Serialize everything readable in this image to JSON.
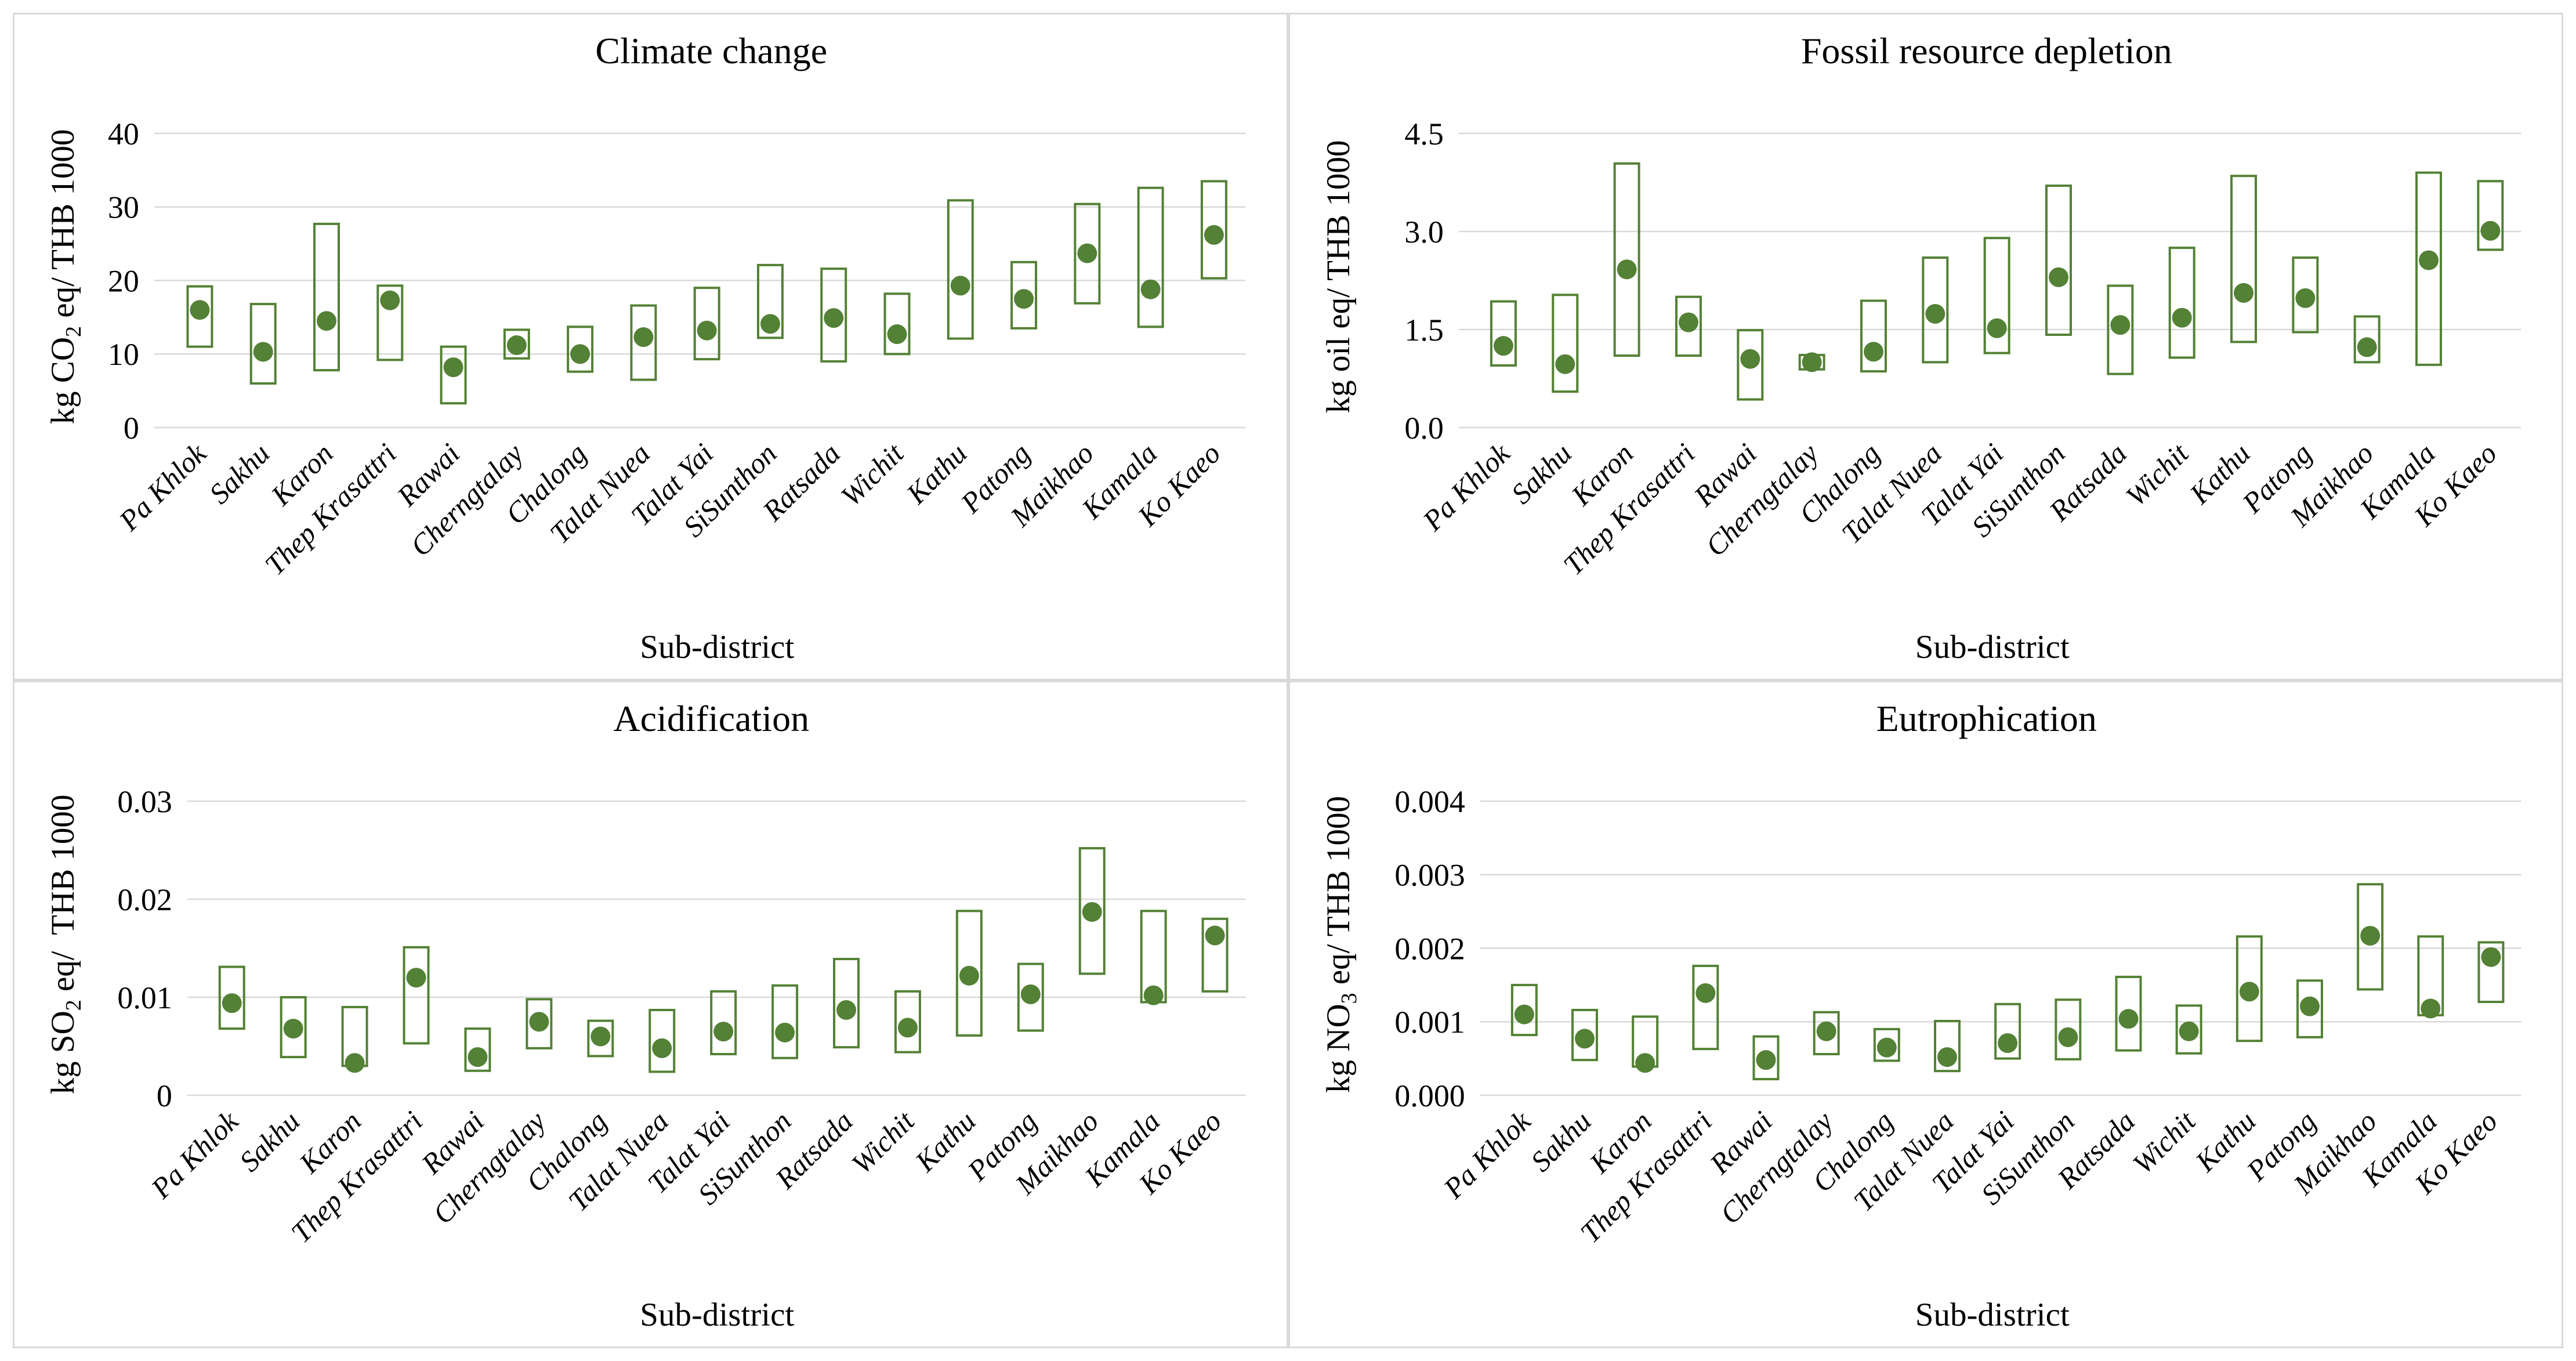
{
  "figure": {
    "x_axis_title": "Sub-district",
    "colors": {
      "marker_green": "#538135",
      "gridline": "#d9d9d9",
      "panel_border": "#d9d9d9",
      "background": "#ffffff",
      "text": "#000000"
    }
  },
  "chart_data": [
    {
      "type": "box-dot",
      "panel": "top-left",
      "title": "Climate change",
      "xlabel": "Sub-district",
      "ylabel": {
        "pre": "kg CO",
        "sub": "2",
        "post": " eq/ THB 1000"
      },
      "y_ticks": [
        "0",
        "10",
        "20",
        "30",
        "40"
      ],
      "y_tick_values": [
        0,
        10,
        20,
        30,
        40
      ],
      "ylim": [
        0,
        40
      ],
      "grid": true,
      "categories": [
        "Pa Khlok",
        "Sakhu",
        "Karon",
        "Thep Krasattri",
        "Rawai",
        "Cherngtalay",
        "Chalong",
        "Talat Nuea",
        "Talat Yai",
        "SiSunthon",
        "Ratsada",
        "Wichit",
        "Kathu",
        "Patong",
        "Maikhao",
        "Kamala",
        "Ko Kaeo"
      ],
      "series": {
        "dot": [
          16.0,
          10.3,
          14.5,
          17.3,
          8.2,
          11.2,
          10.0,
          12.3,
          13.2,
          14.1,
          14.9,
          12.7,
          19.3,
          17.5,
          23.7,
          18.8,
          26.2
        ],
        "box_low": [
          11.0,
          6.0,
          7.8,
          9.2,
          3.3,
          9.4,
          7.6,
          6.5,
          9.3,
          12.2,
          9.0,
          10.0,
          12.1,
          13.5,
          16.9,
          13.7,
          20.3
        ],
        "box_high": [
          19.2,
          16.8,
          27.7,
          19.3,
          11.0,
          13.3,
          13.7,
          16.6,
          19.0,
          22.1,
          21.6,
          18.2,
          30.9,
          22.5,
          30.4,
          32.6,
          33.5
        ]
      }
    },
    {
      "type": "box-dot",
      "panel": "top-right",
      "title": "Fossil resource depletion",
      "xlabel": "Sub-district",
      "ylabel": {
        "pre": "kg oil eq/ THB 1000",
        "sub": "",
        "post": ""
      },
      "y_ticks": [
        "0.0",
        "1.5",
        "3.0",
        "4.5"
      ],
      "y_tick_values": [
        0,
        1.5,
        3.0,
        4.5
      ],
      "ylim": [
        0,
        4.5
      ],
      "grid": true,
      "categories": [
        "Pa Khlok",
        "Sakhu",
        "Karon",
        "Thep Krasattri",
        "Rawai",
        "Cherngtalay",
        "Chalong",
        "Talat Nuea",
        "Talat Yai",
        "SiSunthon",
        "Ratsada",
        "Wichit",
        "Kathu",
        "Patong",
        "Maikhao",
        "Kamala",
        "Ko Kaeo"
      ],
      "series": {
        "dot": [
          1.25,
          0.97,
          2.42,
          1.61,
          1.05,
          1.0,
          1.16,
          1.74,
          1.52,
          2.3,
          1.57,
          1.68,
          2.06,
          1.98,
          1.23,
          2.56,
          3.01
        ],
        "box_low": [
          0.95,
          0.55,
          1.1,
          1.1,
          0.43,
          0.89,
          0.86,
          1.0,
          1.14,
          1.42,
          0.82,
          1.07,
          1.31,
          1.46,
          1.0,
          0.96,
          2.72
        ],
        "box_high": [
          1.93,
          2.03,
          4.04,
          2.0,
          1.49,
          1.11,
          1.94,
          2.6,
          2.9,
          3.7,
          2.17,
          2.75,
          3.85,
          2.6,
          1.7,
          3.9,
          3.77
        ]
      }
    },
    {
      "type": "box-dot",
      "panel": "bottom-left",
      "title": "Acidification",
      "xlabel": "Sub-district",
      "ylabel": {
        "pre": "kg SO",
        "sub": "2",
        "post": " eq/  THB 1000"
      },
      "y_ticks": [
        "0",
        "0.01",
        "0.02",
        "0.03"
      ],
      "y_tick_values": [
        0,
        0.01,
        0.02,
        0.03
      ],
      "ylim": [
        0,
        0.03
      ],
      "grid": true,
      "categories": [
        "Pa Khlok",
        "Sakhu",
        "Karon",
        "Thep Krasattri",
        "Rawai",
        "Cherngtalay",
        "Chalong",
        "Talat Nuea",
        "Talat Yai",
        "SiSunthon",
        "Ratsada",
        "Wichit",
        "Kathu",
        "Patong",
        "Maikhao",
        "Kamala",
        "Ko Kaeo"
      ],
      "series": {
        "dot": [
          0.0094,
          0.0068,
          0.0033,
          0.012,
          0.0039,
          0.0075,
          0.006,
          0.0048,
          0.0065,
          0.0064,
          0.0087,
          0.0069,
          0.0122,
          0.0103,
          0.0187,
          0.0102,
          0.0163
        ],
        "box_low": [
          0.0068,
          0.0039,
          0.003,
          0.0053,
          0.0025,
          0.0048,
          0.004,
          0.0024,
          0.0042,
          0.0038,
          0.0049,
          0.0044,
          0.0061,
          0.0066,
          0.0124,
          0.0095,
          0.0106
        ],
        "box_high": [
          0.0131,
          0.01,
          0.009,
          0.0151,
          0.0068,
          0.0098,
          0.0076,
          0.0087,
          0.0106,
          0.0112,
          0.0139,
          0.0106,
          0.0188,
          0.0134,
          0.0252,
          0.0188,
          0.018
        ]
      }
    },
    {
      "type": "box-dot",
      "panel": "bottom-right",
      "title": "Eutrophication",
      "xlabel": "Sub-district",
      "ylabel": {
        "pre": "kg NO",
        "sub": "3",
        "post": " eq/ THB 1000"
      },
      "y_ticks": [
        "0.000",
        "0.001",
        "0.002",
        "0.003",
        "0.004"
      ],
      "y_tick_values": [
        0,
        0.001,
        0.002,
        0.003,
        0.004
      ],
      "ylim": [
        0,
        0.004
      ],
      "grid": true,
      "categories": [
        "Pa Khlok",
        "Sakhu",
        "Karon",
        "Thep Krasattri",
        "Rawai",
        "Cherngtalay",
        "Chalong",
        "Talat Nuea",
        "Talat Yai",
        "SiSunthon",
        "Ratsada",
        "Wichit",
        "Kathu",
        "Patong",
        "Maikhao",
        "Kamala",
        "Ko Kaeo"
      ],
      "series": {
        "dot": [
          0.0011,
          0.00077,
          0.00044,
          0.00139,
          0.00048,
          0.00087,
          0.00065,
          0.00052,
          0.00071,
          0.00079,
          0.00104,
          0.00087,
          0.00141,
          0.00121,
          0.00217,
          0.00118,
          0.00188
        ],
        "box_low": [
          0.00082,
          0.00048,
          0.00039,
          0.00063,
          0.00022,
          0.00056,
          0.00047,
          0.00033,
          0.0005,
          0.00049,
          0.00061,
          0.00057,
          0.00074,
          0.00079,
          0.00144,
          0.00109,
          0.00127
        ],
        "box_high": [
          0.0015,
          0.00116,
          0.00107,
          0.00176,
          0.0008,
          0.00113,
          0.0009,
          0.00101,
          0.00124,
          0.0013,
          0.00161,
          0.00122,
          0.00216,
          0.00156,
          0.00287,
          0.00216,
          0.00208
        ]
      }
    }
  ]
}
